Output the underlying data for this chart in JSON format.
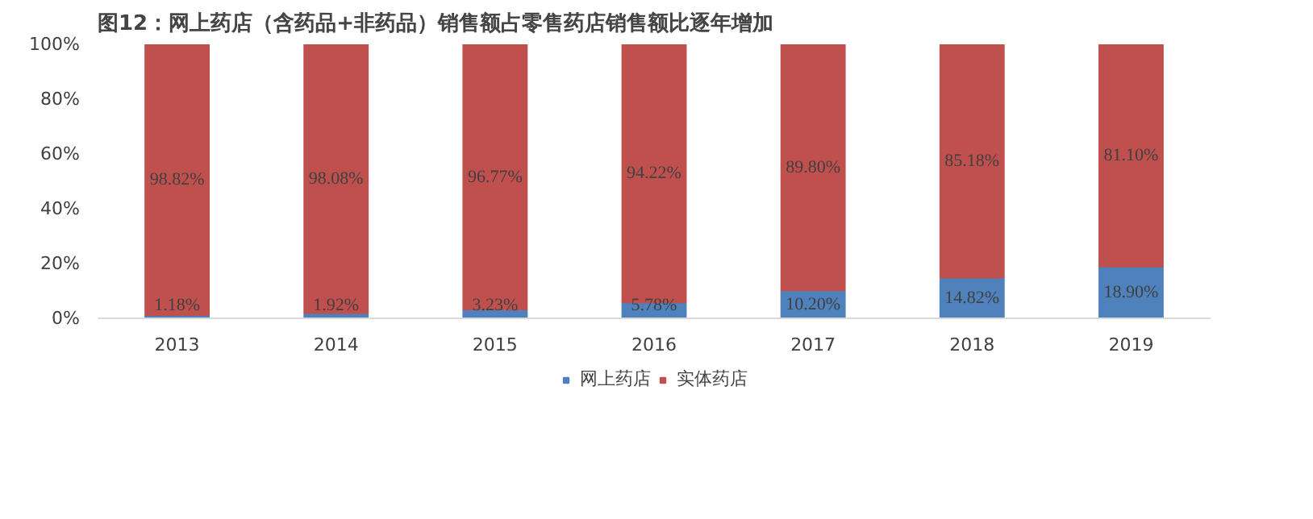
{
  "chart_data": {
    "type": "bar",
    "title": "图12：网上药店（含药品+非药品）销售额占零售药店销售额比逐年增加",
    "categories": [
      "2013",
      "2014",
      "2015",
      "2016",
      "2017",
      "2018",
      "2019"
    ],
    "stacked": true,
    "series": [
      {
        "name": "网上药店",
        "color": "#4f81bd",
        "values": [
          1.18,
          1.92,
          3.23,
          5.78,
          10.2,
          14.82,
          18.9
        ],
        "value_labels": [
          "1.18%",
          "1.92%",
          "3.23%",
          "5.78%",
          "10.20%",
          "14.82%",
          "18.90%"
        ]
      },
      {
        "name": "实体药店",
        "color": "#c0504d",
        "values": [
          98.82,
          98.08,
          96.77,
          94.22,
          89.8,
          85.18,
          81.1
        ],
        "value_labels": [
          "98.82%",
          "98.08%",
          "96.77%",
          "94.22%",
          "89.80%",
          "85.18%",
          "81.10%"
        ]
      }
    ],
    "ylim": [
      0,
      100
    ],
    "yticks": [
      {
        "value": 0,
        "label": "0%"
      },
      {
        "value": 20,
        "label": "20%"
      },
      {
        "value": 40,
        "label": "40%"
      },
      {
        "value": 60,
        "label": "60%"
      },
      {
        "value": 80,
        "label": "80%"
      },
      {
        "value": 100,
        "label": "100%"
      }
    ],
    "grid": false,
    "legend": "bottom"
  }
}
